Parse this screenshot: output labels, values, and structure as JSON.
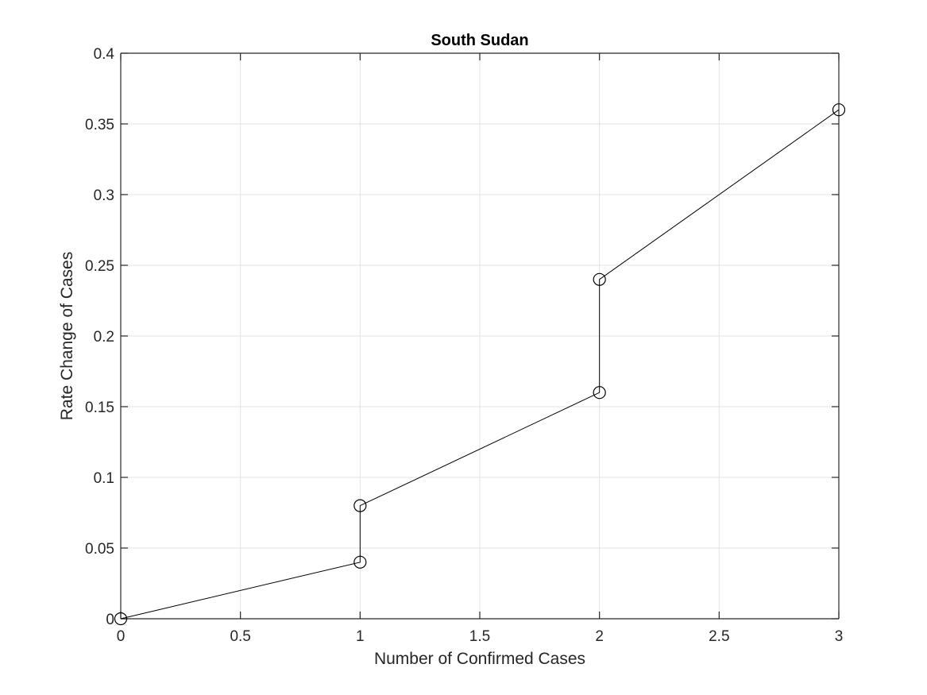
{
  "chart_data": {
    "type": "line",
    "title": "South Sudan",
    "xlabel": "Number of Confirmed Cases",
    "ylabel": "Rate Change of Cases",
    "xlim": [
      0,
      3
    ],
    "ylim": [
      0,
      0.4
    ],
    "xticks": [
      0,
      0.5,
      1,
      1.5,
      2,
      2.5,
      3
    ],
    "xtick_labels": [
      "0",
      "0.5",
      "1",
      "1.5",
      "2",
      "2.5",
      "3"
    ],
    "yticks": [
      0,
      0.05,
      0.1,
      0.15,
      0.2,
      0.25,
      0.3,
      0.35,
      0.4
    ],
    "ytick_labels": [
      "0",
      "0.05",
      "0.1",
      "0.15",
      "0.2",
      "0.25",
      "0.3",
      "0.35",
      "0.4"
    ],
    "grid": true,
    "series": [
      {
        "marker": "circle",
        "line_color": "#000000",
        "x": [
          0,
          1,
          1,
          2,
          2,
          3
        ],
        "y": [
          0,
          0.04,
          0.08,
          0.16,
          0.24,
          0.36
        ]
      }
    ]
  }
}
